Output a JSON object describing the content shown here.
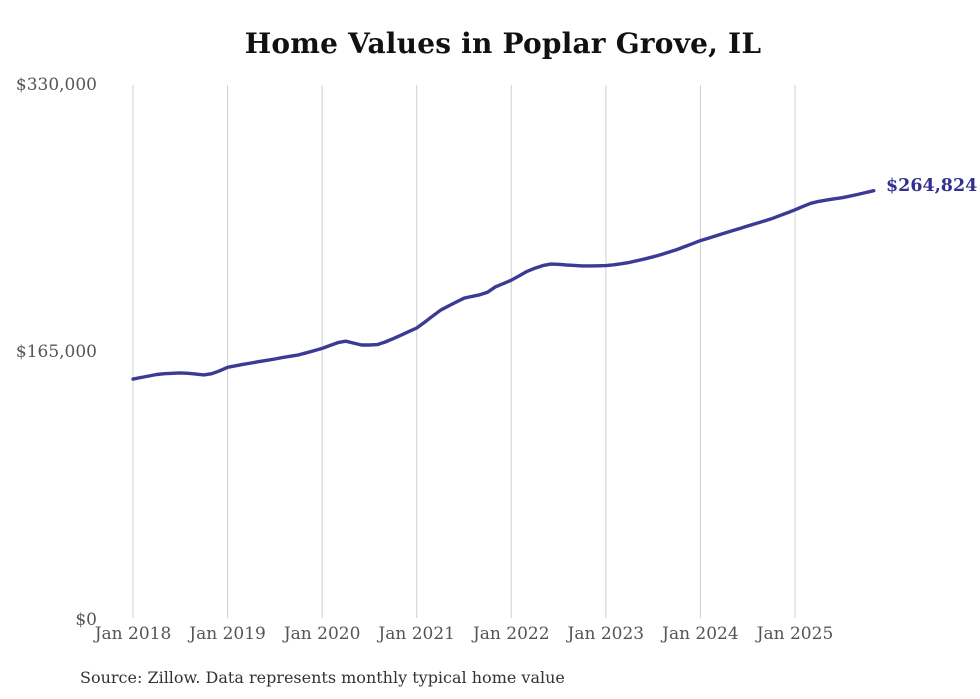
{
  "title": "Home Values in Poplar Grove, IL",
  "y_axis": {
    "labels": [
      "$330,000",
      "$165,000",
      "$0"
    ]
  },
  "end_annotation": "$264,824",
  "source_note": "Source: Zillow. Data represents monthly typical home value",
  "colors": {
    "line": "#3d3a96",
    "grid": "#cfcfcf",
    "axis_text": "#555555",
    "annotation": "#32308f",
    "title": "#111111",
    "source_text": "#333333"
  },
  "chart_data": {
    "type": "line",
    "title": "Home Values in Poplar Grove, IL",
    "x_frequency": "monthly",
    "x_start": "2018-01",
    "x_end": "2025-11",
    "x_tick_labels": [
      "Jan 2018",
      "Jan 2019",
      "Jan 2020",
      "Jan 2021",
      "Jan 2022",
      "Jan 2023",
      "Jan 2024",
      "Jan 2025"
    ],
    "y_tick_labels": [
      "$0",
      "$165,000",
      "$330,000"
    ],
    "ylim": [
      0,
      330000
    ],
    "grid": "vertical-year-lines-only",
    "legend": "none",
    "series": [
      {
        "name": "Monthly typical home value",
        "values": [
          148600,
          149600,
          150500,
          151400,
          151900,
          152200,
          152400,
          152200,
          151700,
          151200,
          151900,
          153700,
          155900,
          156800,
          157700,
          158500,
          159400,
          160200,
          161000,
          161900,
          162700,
          163500,
          164800,
          166200,
          167500,
          169300,
          171100,
          172000,
          170800,
          169600,
          169600,
          169900,
          171500,
          173500,
          175700,
          177900,
          180100,
          183700,
          187400,
          191000,
          193600,
          196100,
          198500,
          199600,
          200600,
          202200,
          205500,
          207500,
          209600,
          212300,
          215000,
          217000,
          218600,
          219500,
          219400,
          219000,
          218700,
          218400,
          218400,
          218500,
          218600,
          219100,
          219800,
          220600,
          221700,
          222800,
          224000,
          225400,
          226900,
          228500,
          230300,
          232100,
          234000,
          235500,
          237000,
          238500,
          240000,
          241500,
          243000,
          244500,
          246000,
          247500,
          249300,
          251100,
          253000,
          255100,
          257000,
          258200,
          259000,
          259800,
          260500,
          261500,
          262500,
          263700,
          264824
        ]
      }
    ],
    "last_point": {
      "month": "2025-11",
      "value": 264824,
      "label": "$264,824"
    }
  }
}
